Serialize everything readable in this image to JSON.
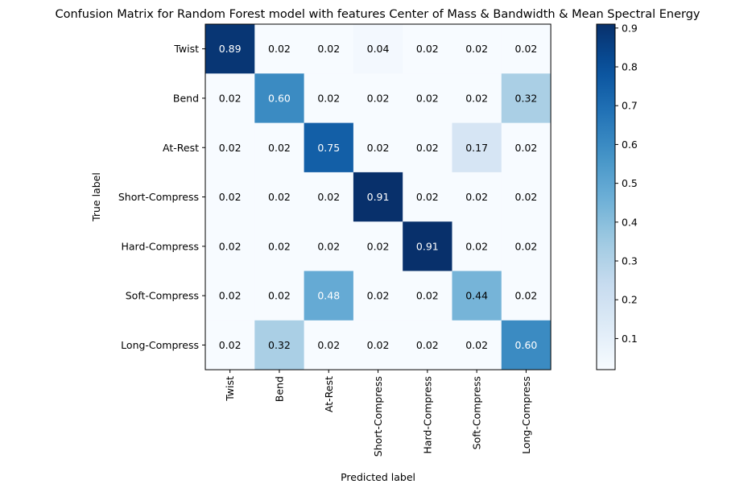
{
  "chart_data": {
    "type": "heatmap",
    "title": "Confusion Matrix for Random Forest model with features Center of Mass & Bandwidth & Mean Spectral Energy",
    "xlabel": "Predicted label",
    "ylabel": "True label",
    "rows": [
      "Twist",
      "Bend",
      "At-Rest",
      "Short-Compress",
      "Hard-Compress",
      "Soft-Compress",
      "Long-Compress"
    ],
    "columns": [
      "Twist",
      "Bend",
      "At-Rest",
      "Short-Compress",
      "Hard-Compress",
      "Soft-Compress",
      "Long-Compress"
    ],
    "values": [
      [
        0.89,
        0.02,
        0.02,
        0.04,
        0.02,
        0.02,
        0.02
      ],
      [
        0.02,
        0.6,
        0.02,
        0.02,
        0.02,
        0.02,
        0.32
      ],
      [
        0.02,
        0.02,
        0.75,
        0.02,
        0.02,
        0.17,
        0.02
      ],
      [
        0.02,
        0.02,
        0.02,
        0.91,
        0.02,
        0.02,
        0.02
      ],
      [
        0.02,
        0.02,
        0.02,
        0.02,
        0.91,
        0.02,
        0.02
      ],
      [
        0.02,
        0.02,
        0.48,
        0.02,
        0.02,
        0.44,
        0.02
      ],
      [
        0.02,
        0.32,
        0.02,
        0.02,
        0.02,
        0.02,
        0.6
      ]
    ],
    "cell_labels": [
      [
        "0.89",
        "0.02",
        "0.02",
        "0.04",
        "0.02",
        "0.02",
        "0.02"
      ],
      [
        "0.02",
        "0.60",
        "0.02",
        "0.02",
        "0.02",
        "0.02",
        "0.32"
      ],
      [
        "0.02",
        "0.02",
        "0.75",
        "0.02",
        "0.02",
        "0.17",
        "0.02"
      ],
      [
        "0.02",
        "0.02",
        "0.02",
        "0.91",
        "0.02",
        "0.02",
        "0.02"
      ],
      [
        "0.02",
        "0.02",
        "0.02",
        "0.02",
        "0.91",
        "0.02",
        "0.02"
      ],
      [
        "0.02",
        "0.02",
        "0.48",
        "0.02",
        "0.02",
        "0.44",
        "0.02"
      ],
      [
        "0.02",
        "0.32",
        "0.02",
        "0.02",
        "0.02",
        "0.02",
        "0.60"
      ]
    ],
    "colormap": "Blues",
    "color_range": [
      0.02,
      0.91
    ],
    "colorbar": {
      "ticks": [
        0.1,
        0.2,
        0.3,
        0.4,
        0.5,
        0.6,
        0.7,
        0.8,
        0.9
      ],
      "tick_labels": [
        "0.1",
        "0.2",
        "0.3",
        "0.4",
        "0.5",
        "0.6",
        "0.7",
        "0.8",
        "0.9"
      ]
    },
    "grid": false,
    "legend": "colorbar-right"
  }
}
